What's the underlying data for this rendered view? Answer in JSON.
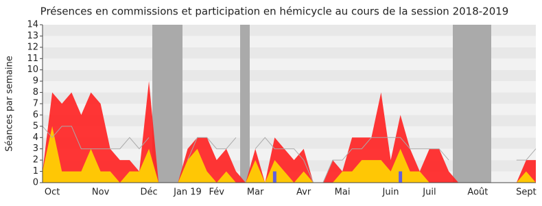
{
  "chart_data": {
    "type": "area",
    "title": "Présences en commissions et participation en hémicycle au cours de la session 2018-2019",
    "y_label": "Séances par semaine",
    "categories": [
      null,
      "Oct",
      null,
      null,
      null,
      null,
      "Nov",
      null,
      null,
      null,
      null,
      "Déc",
      null,
      null,
      null,
      "Jan 19",
      null,
      null,
      "Fév",
      null,
      null,
      null,
      "Mar",
      null,
      null,
      null,
      null,
      "Avr",
      null,
      null,
      null,
      "Mai",
      null,
      null,
      null,
      null,
      "Juin",
      null,
      null,
      null,
      "Juil",
      null,
      null,
      null,
      null,
      "Août",
      null,
      null,
      null,
      null,
      "Sept",
      null
    ],
    "series": [
      {
        "type": "area",
        "color": "#ff2020",
        "values": [
          1,
          8,
          7,
          8,
          6,
          8,
          7,
          3,
          2,
          2,
          1,
          9,
          0,
          0,
          0,
          3,
          4,
          4,
          2,
          3,
          1,
          0,
          3,
          0,
          4,
          3,
          2,
          3,
          0,
          0,
          2,
          1,
          4,
          4,
          4,
          8,
          2,
          6,
          3,
          1,
          3,
          3,
          1,
          0,
          0,
          0,
          0,
          0,
          0,
          0,
          2,
          2
        ]
      },
      {
        "type": "area",
        "color": "#ffd700",
        "values": [
          1,
          5,
          1,
          1,
          1,
          3,
          1,
          1,
          0,
          1,
          1,
          3,
          0,
          0,
          0,
          2,
          3,
          1,
          0,
          1,
          0,
          0,
          2,
          0,
          2,
          1,
          0,
          1,
          0,
          0,
          0,
          1,
          1,
          2,
          2,
          2,
          1,
          3,
          1,
          1,
          0,
          0,
          0,
          0,
          0,
          0,
          0,
          0,
          0,
          0,
          1,
          0
        ]
      },
      {
        "type": "line",
        "color": "#aaaaaa",
        "values": [
          5,
          4,
          5,
          5,
          3,
          3,
          3,
          3,
          3,
          4,
          3,
          4,
          null,
          null,
          null,
          2,
          4,
          4,
          3,
          3,
          4,
          null,
          3,
          4,
          3,
          3,
          3,
          2,
          0,
          0,
          2,
          2,
          3,
          3,
          4,
          4,
          4,
          4,
          3,
          3,
          3,
          3,
          2,
          null,
          null,
          null,
          null,
          null,
          null,
          2,
          2,
          3
        ]
      },
      {
        "type": "bar",
        "color": "#6060e0",
        "values": [
          0,
          0,
          0,
          0,
          0,
          0,
          0,
          0,
          0,
          0,
          0,
          0,
          0,
          0,
          0,
          0,
          0,
          0,
          0,
          0,
          0,
          0,
          0,
          0,
          1,
          0,
          0,
          0,
          0,
          0,
          0,
          0,
          0,
          0,
          0,
          0,
          0,
          1,
          0,
          0,
          0,
          0,
          0,
          0,
          0,
          0,
          0,
          0,
          0,
          0,
          0,
          0
        ]
      }
    ],
    "ylim": [
      0,
      14
    ],
    "yticks": [
      0,
      1,
      2,
      3,
      4,
      5,
      6,
      7,
      8,
      9,
      10,
      11,
      12,
      13,
      14
    ],
    "grid": true
  }
}
